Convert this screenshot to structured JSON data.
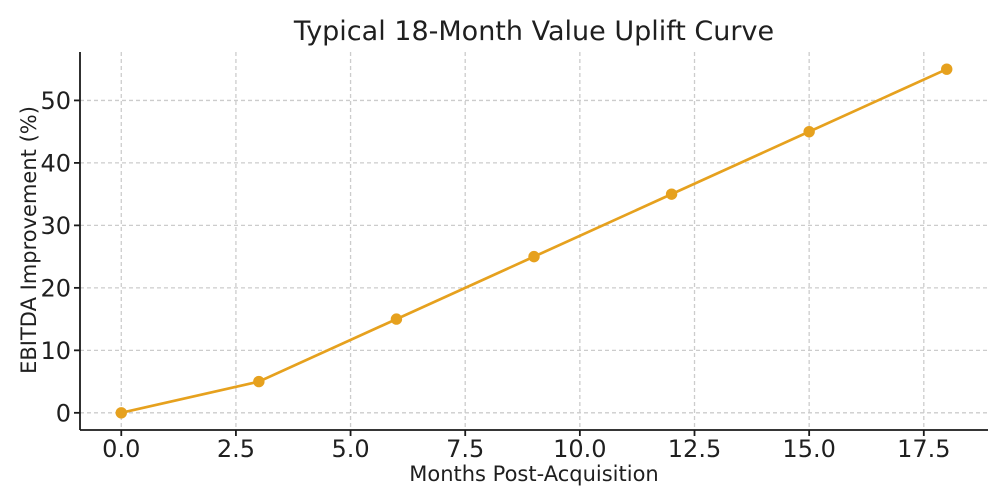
{
  "chart_data": {
    "type": "line",
    "title": "Typical 18-Month Value Uplift Curve",
    "xlabel": "Months Post-Acquisition",
    "ylabel": "EBITDA Improvement (%)",
    "x": [
      0,
      3,
      6,
      9,
      12,
      15,
      18
    ],
    "y": [
      0,
      5,
      15,
      25,
      35,
      45,
      55
    ],
    "xlim": [
      -0.9,
      18.9
    ],
    "ylim": [
      -2.75,
      57.75
    ],
    "xticks": {
      "values": [
        0,
        2.5,
        5,
        7.5,
        10,
        12.5,
        15,
        17.5
      ],
      "labels": [
        "0.0",
        "2.5",
        "5.0",
        "7.5",
        "10.0",
        "12.5",
        "15.0",
        "17.5"
      ]
    },
    "yticks": {
      "values": [
        0,
        10,
        20,
        30,
        40,
        50
      ],
      "labels": [
        "0",
        "10",
        "20",
        "30",
        "40",
        "50"
      ]
    },
    "grid": true,
    "grid_style": "dashed",
    "legend": null,
    "spines": [
      "left",
      "bottom"
    ],
    "colors": {
      "line": "#E6A11E",
      "marker": "#E6A11E",
      "grid": "#CCCCCC",
      "spine": "#1A1A1A",
      "text": "#1F1F1F",
      "background": "#FFFFFF"
    }
  }
}
